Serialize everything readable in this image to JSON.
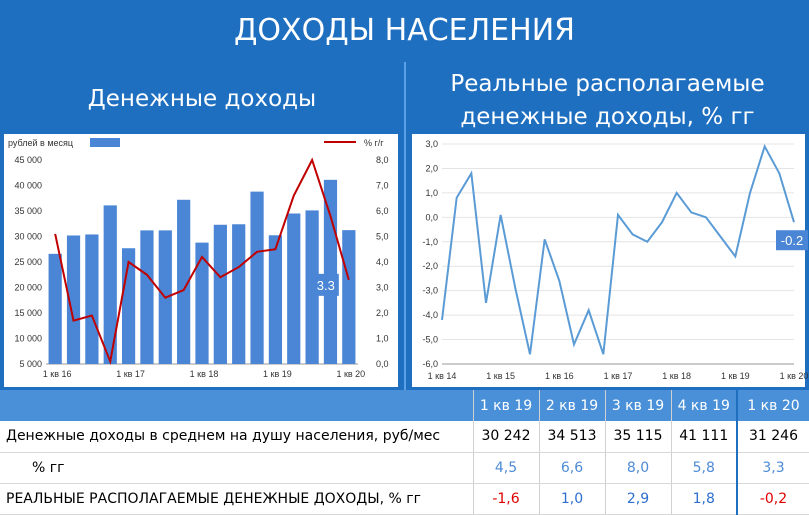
{
  "title": "ДОХОДЫ НАСЕЛЕНИЯ",
  "left_title": "Денежные доходы",
  "right_title_1": "Реальные располагаемые",
  "right_title_2": "денежные доходы, % гг",
  "colors": {
    "bar": "#4a85d6",
    "line_red": "#c00000",
    "line_blue": "#5b9bd5",
    "label_box": "#4a85d6"
  },
  "chart_data": [
    {
      "type": "bar",
      "legend": [
        "рублей в месяц",
        "% г/г"
      ],
      "x_ticks": [
        "1 кв 16",
        "1 кв 17",
        "1 кв 18",
        "1 кв 19",
        "1 кв 20"
      ],
      "series": [
        {
          "name": "рублей в месяц",
          "values": [
            26600,
            30200,
            30400,
            36100,
            27700,
            31200,
            31200,
            37200,
            28800,
            32300,
            32400,
            38800,
            30242,
            34513,
            35115,
            41111,
            31246
          ]
        },
        {
          "name": "% г/г",
          "values": [
            5.1,
            1.7,
            1.9,
            0.1,
            4.0,
            3.5,
            2.6,
            2.9,
            4.2,
            3.4,
            3.8,
            4.4,
            4.5,
            6.6,
            8.0,
            5.8,
            3.3
          ]
        }
      ],
      "y_left_ticks": [
        "45 000",
        "40 000",
        "35 000",
        "30 000",
        "25 000",
        "20 000",
        "15 000",
        "10 000",
        "5 000"
      ],
      "y_right_ticks": [
        "8,0",
        "7,0",
        "6,0",
        "5,0",
        "4,0",
        "3,0",
        "2,0",
        "1,0",
        "0,0"
      ],
      "ylim_left": [
        5000,
        45000
      ],
      "ylim_right": [
        0,
        8
      ],
      "end_label": "3.3"
    },
    {
      "type": "line",
      "x_ticks": [
        "1 кв 14",
        "1 кв 15",
        "1 кв 16",
        "1 кв 17",
        "1 кв 18",
        "1 кв 19",
        "1 кв 20"
      ],
      "values": [
        -4.2,
        0.8,
        1.8,
        -3.5,
        0.1,
        -2.9,
        -5.6,
        -0.9,
        -2.6,
        -5.2,
        -3.8,
        -5.6,
        0.1,
        -0.7,
        -1.0,
        -0.2,
        1.0,
        0.2,
        0.0,
        -0.8,
        -1.6,
        1.0,
        2.9,
        1.8,
        -0.2
      ],
      "y_ticks": [
        "3,0",
        "2,0",
        "1,0",
        "0,0",
        "-1,0",
        "-2,0",
        "-3,0",
        "-4,0",
        "-5,0",
        "-6,0"
      ],
      "ylim": [
        -6,
        3
      ],
      "end_label": "-0.2"
    }
  ],
  "table": {
    "headers": [
      "1 кв 19",
      "2 кв 19",
      "3 кв 19",
      "4 кв 19",
      "1 кв 20"
    ],
    "rows": [
      {
        "label": "Денежные доходы в среднем на душу населения, руб/мес",
        "values": [
          "30 242",
          "34 513",
          "35 115",
          "41 111",
          "31 246"
        ]
      },
      {
        "label": "% гг",
        "values": [
          "4,5",
          "6,6",
          "8,0",
          "5,8",
          "3,3"
        ]
      },
      {
        "label": "РЕАЛЬНЫЕ РАСПОЛАГАЕМЫЕ ДЕНЕЖНЫЕ ДОХОДЫ, % гг",
        "values": [
          "-1,6",
          "1,0",
          "2,9",
          "1,8",
          "-0,2"
        ]
      }
    ]
  }
}
